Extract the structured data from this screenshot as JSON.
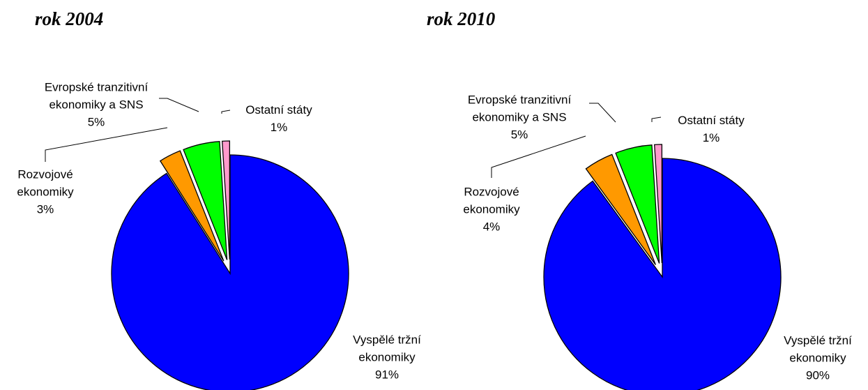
{
  "chart_data": [
    {
      "type": "pie",
      "title": "rok 2004",
      "categories": [
        "Vyspělé tržní ekonomiky",
        "Rozvojové ekonomiky",
        "Evropské tranzitivní ekonomiky a SNS",
        "Ostatní státy"
      ],
      "values": [
        91,
        3,
        5,
        1
      ],
      "value_labels": [
        "91%",
        "3%",
        "5%",
        "1%"
      ],
      "colors": [
        "#0000ff",
        "#ff9900",
        "#00ff00",
        "#ff99cc"
      ]
    },
    {
      "type": "pie",
      "title": "rok 2010",
      "categories": [
        "Vyspělé tržní ekonomiky",
        "Rozvojové ekonomiky",
        "Evropské tranzitivní ekonomiky a SNS",
        "Ostatní státy"
      ],
      "values": [
        90,
        4,
        5,
        1
      ],
      "value_labels": [
        "90%",
        "4%",
        "5%",
        "1%"
      ],
      "colors": [
        "#0000ff",
        "#ff9900",
        "#00ff00",
        "#ff99cc"
      ]
    }
  ]
}
